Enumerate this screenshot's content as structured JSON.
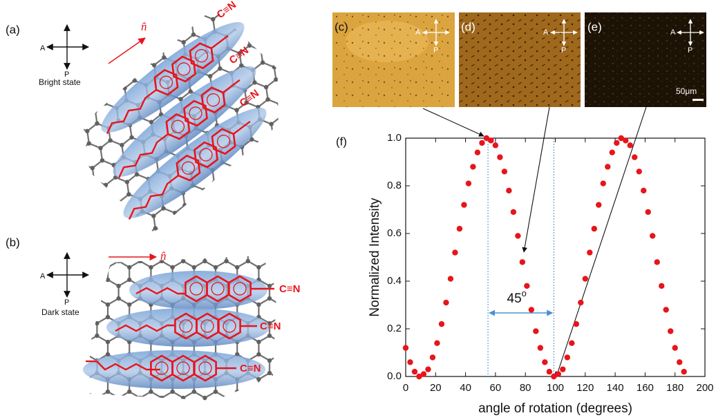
{
  "chart_data": {
    "type": "scatter",
    "label": "(f)",
    "x_label": "angle of rotation (degrees)",
    "y_label": "Normalized Intensity",
    "color": "#e8141c",
    "x": [
      0,
      3,
      6,
      9,
      12,
      15,
      18,
      21,
      24,
      27,
      30,
      33,
      36,
      39,
      42,
      45,
      48,
      51,
      54,
      57,
      60,
      63,
      66,
      69,
      72,
      75,
      78,
      81,
      84,
      87,
      90,
      93,
      96,
      99,
      102,
      105,
      108,
      111,
      114,
      117,
      120,
      123,
      126,
      129,
      132,
      135,
      138,
      141,
      144,
      147,
      150,
      153,
      156,
      159,
      162,
      165,
      168,
      171,
      174,
      177,
      180,
      183,
      186
    ],
    "values": [
      0.12,
      0.06,
      0.02,
      0.0,
      0.01,
      0.03,
      0.08,
      0.14,
      0.22,
      0.31,
      0.41,
      0.52,
      0.62,
      0.72,
      0.81,
      0.88,
      0.94,
      0.98,
      1.0,
      0.99,
      0.97,
      0.92,
      0.86,
      0.78,
      0.69,
      0.59,
      0.48,
      0.38,
      0.28,
      0.19,
      0.12,
      0.06,
      0.02,
      0.0,
      0.01,
      0.03,
      0.08,
      0.14,
      0.22,
      0.31,
      0.41,
      0.52,
      0.62,
      0.72,
      0.81,
      0.88,
      0.94,
      0.98,
      1.0,
      0.99,
      0.97,
      0.92,
      0.86,
      0.78,
      0.69,
      0.59,
      0.48,
      0.38,
      0.28,
      0.19,
      0.12,
      0.06,
      0.02
    ],
    "xlim": [
      0,
      200
    ],
    "ylim": [
      0,
      1
    ],
    "xticks": [
      0,
      20,
      40,
      60,
      80,
      100,
      120,
      140,
      160,
      180,
      200
    ],
    "yticks": [
      {
        "value": 0,
        "label": "0.0"
      },
      0.2,
      0.4,
      0.6,
      0.8,
      {
        "value": 1,
        "label": "1.0"
      }
    ],
    "reference_lines": [
      55,
      99
    ],
    "annotation": {
      "text": "45",
      "sup": "o"
    }
  },
  "panels": {
    "a": {
      "label": "(a)",
      "analyzer": "A",
      "polarizer": "P",
      "state": "Bright state",
      "director": "n̂",
      "groups": [
        "C≡N",
        "C≡N",
        "C≡N"
      ]
    },
    "b": {
      "label": "(b)",
      "analyzer": "A",
      "polarizer": "P",
      "state": "Dark state",
      "director": "n̂",
      "groups": [
        "C≡N",
        "C≡N",
        "C≡N"
      ]
    },
    "micrographs": [
      {
        "label": "(c)",
        "analyzer": "A",
        "polarizer": "P"
      },
      {
        "label": "(d)",
        "analyzer": "A",
        "polarizer": "P"
      },
      {
        "label": "(e)",
        "analyzer": "A",
        "polarizer": "P",
        "scale": "50μm"
      }
    ]
  }
}
